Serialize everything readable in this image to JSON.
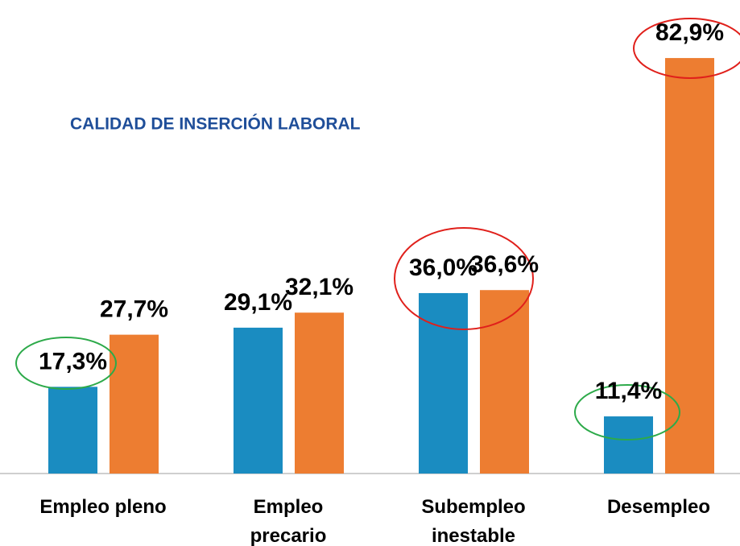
{
  "chart_data": {
    "type": "bar",
    "title": "CALIDAD DE INSERCIÓN LABORAL",
    "categories": [
      "Empleo pleno",
      "Empleo\nprecario",
      "Subempleo\ninestable",
      "Desempleo"
    ],
    "series": [
      {
        "color": "#1a8cc1",
        "values": [
          17.3,
          29.1,
          36.0,
          11.4
        ],
        "value_labels": [
          "17,3%",
          "29,1%",
          "36,0%",
          "11,4%"
        ]
      },
      {
        "color": "#ed7d31",
        "values": [
          27.7,
          32.1,
          36.6,
          82.9
        ],
        "value_labels": [
          "27,7%",
          "32,1%",
          "36,6%",
          "82,9%"
        ]
      }
    ],
    "ylim": [
      0,
      85
    ]
  }
}
